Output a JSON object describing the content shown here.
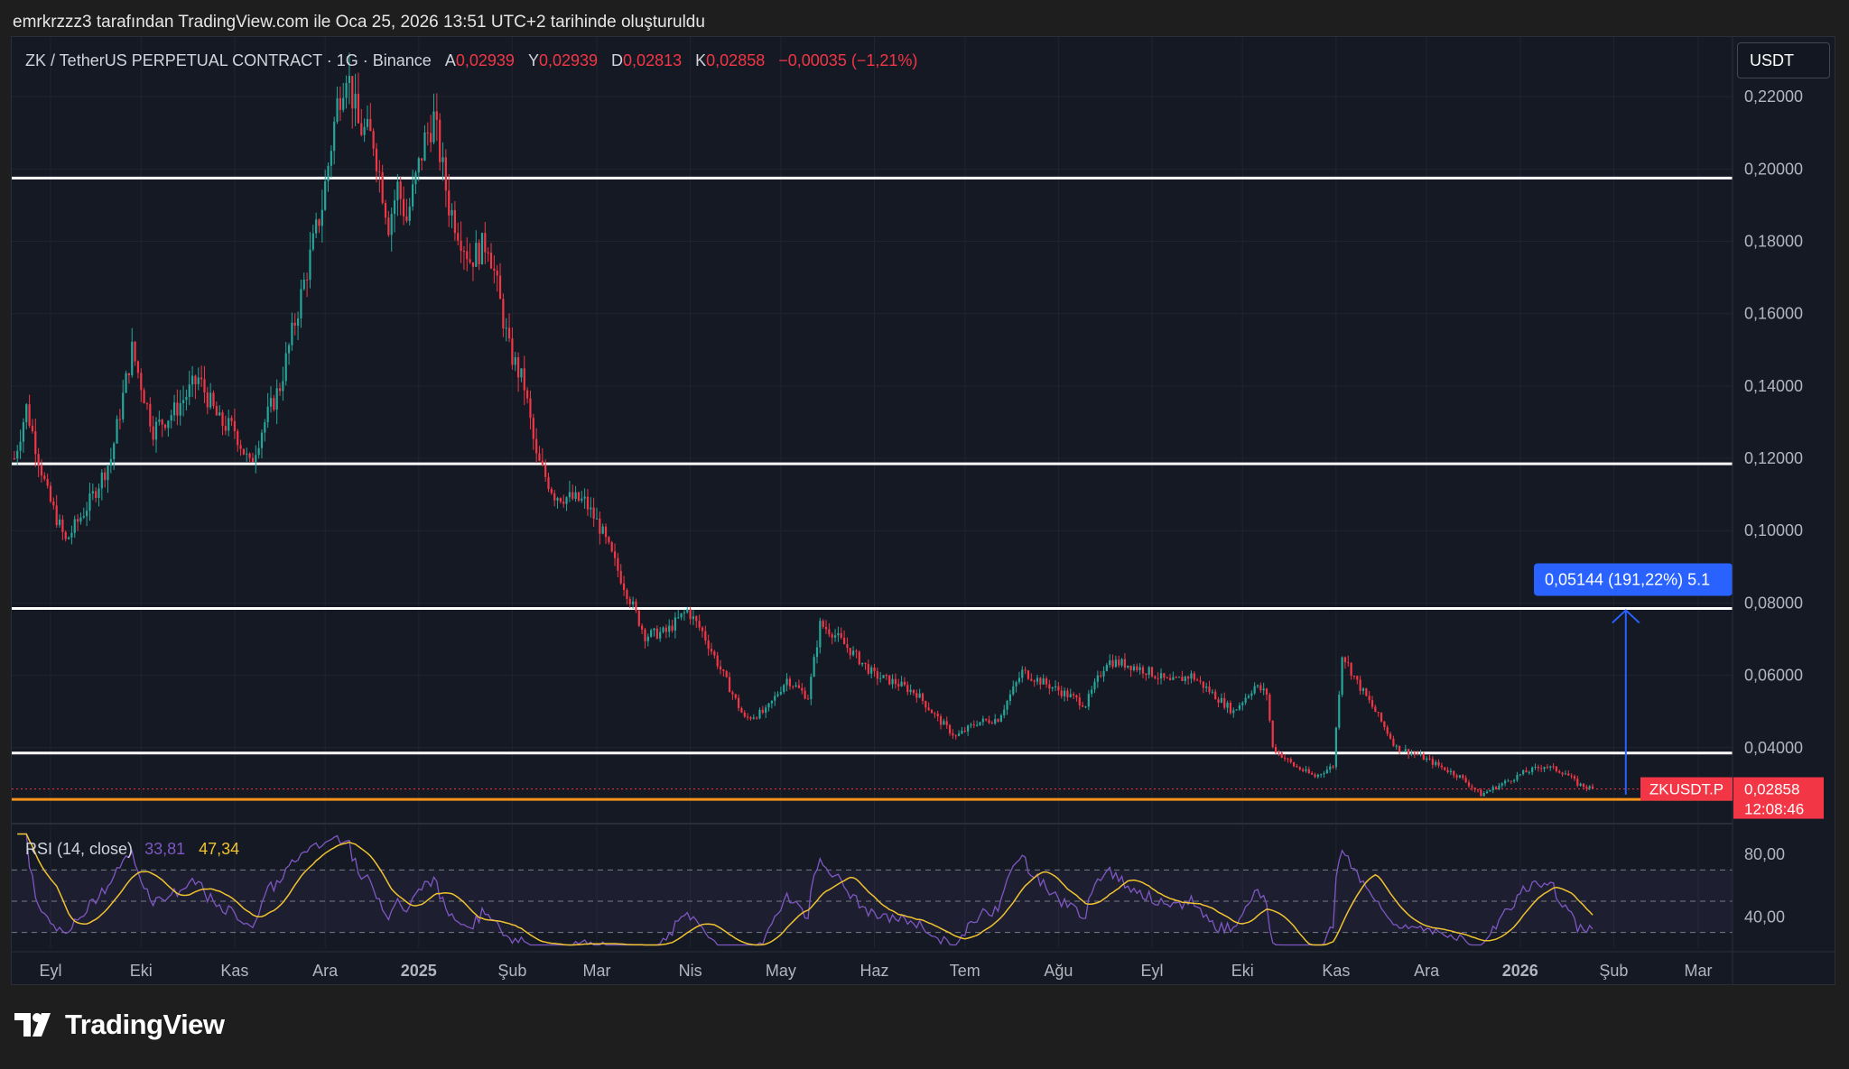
{
  "byline": "emrkrzzz3 tarafından TradingView.com ile Oca 25, 2026 13:51 UTC+2 tarihinde oluşturuldu",
  "header": {
    "symbol": "ZK / TetherUS PERPETUAL CONTRACT · 1G · Binance",
    "open_label": "A",
    "open_value": "0,02939",
    "high_label": "Y",
    "high_value": "0,02939",
    "low_label": "D",
    "low_value": "0,02813",
    "close_label": "K",
    "close_value": "0,02858",
    "change": "−0,00035 (−1,21%)"
  },
  "currency": "USDT",
  "logo_text": "TradingView",
  "colors": {
    "up": "#26a69a",
    "down": "#f23645",
    "background": "#151924",
    "rsi": "#7e57c2",
    "rsi_ma": "#f0c330",
    "support": "#f7931a",
    "measure": "#2962ff"
  },
  "chart_data": {
    "type": "candlestick",
    "symbol_badge": "ZKUSDT.P",
    "last_price": "0,02858",
    "countdown": "12:08:46",
    "ylim": [
      0.0175,
      0.2365
    ],
    "y_ticks": [
      {
        "value": 0.22,
        "label": "0,22000"
      },
      {
        "value": 0.2,
        "label": "0,20000"
      },
      {
        "value": 0.18,
        "label": "0,18000"
      },
      {
        "value": 0.16,
        "label": "0,16000"
      },
      {
        "value": 0.14,
        "label": "0,14000"
      },
      {
        "value": 0.12,
        "label": "0,12000"
      },
      {
        "value": 0.1,
        "label": "0,10000"
      },
      {
        "value": 0.08,
        "label": "0,08000"
      },
      {
        "value": 0.06,
        "label": "0,06000"
      },
      {
        "value": 0.04,
        "label": "0,04000"
      }
    ],
    "x_ticks": [
      {
        "date": "2024-09-01",
        "label": "Eyl",
        "bold": false
      },
      {
        "date": "2024-10-01",
        "label": "Eki",
        "bold": false
      },
      {
        "date": "2024-11-01",
        "label": "Kas",
        "bold": false
      },
      {
        "date": "2024-12-01",
        "label": "Ara",
        "bold": false
      },
      {
        "date": "2025-01-01",
        "label": "2025",
        "bold": true
      },
      {
        "date": "2025-02-01",
        "label": "Şub",
        "bold": false
      },
      {
        "date": "2025-03-01",
        "label": "Mar",
        "bold": false
      },
      {
        "date": "2025-04-01",
        "label": "Nis",
        "bold": false
      },
      {
        "date": "2025-05-01",
        "label": "May",
        "bold": false
      },
      {
        "date": "2025-06-01",
        "label": "Haz",
        "bold": false
      },
      {
        "date": "2025-07-01",
        "label": "Tem",
        "bold": false
      },
      {
        "date": "2025-08-01",
        "label": "Ağu",
        "bold": false
      },
      {
        "date": "2025-09-01",
        "label": "Eyl",
        "bold": false
      },
      {
        "date": "2025-10-01",
        "label": "Eki",
        "bold": false
      },
      {
        "date": "2025-11-01",
        "label": "Kas",
        "bold": false
      },
      {
        "date": "2025-12-01",
        "label": "Ara",
        "bold": false
      },
      {
        "date": "2026-01-01",
        "label": "2026",
        "bold": true
      },
      {
        "date": "2026-02-01",
        "label": "Şub",
        "bold": false
      },
      {
        "date": "2026-03-01",
        "label": "Mar",
        "bold": false
      }
    ],
    "price_path": [
      [
        "2024-08-20",
        0.12
      ],
      [
        "2024-08-24",
        0.134
      ],
      [
        "2024-08-31",
        0.11
      ],
      [
        "2024-09-06",
        0.097
      ],
      [
        "2024-09-14",
        0.108
      ],
      [
        "2024-09-21",
        0.12
      ],
      [
        "2024-09-28",
        0.15
      ],
      [
        "2024-10-05",
        0.128
      ],
      [
        "2024-10-12",
        0.133
      ],
      [
        "2024-10-20",
        0.142
      ],
      [
        "2024-10-27",
        0.13
      ],
      [
        "2024-11-01",
        0.128
      ],
      [
        "2024-11-06",
        0.118
      ],
      [
        "2024-11-10",
        0.128
      ],
      [
        "2024-11-16",
        0.14
      ],
      [
        "2024-11-23",
        0.165
      ],
      [
        "2024-11-30",
        0.19
      ],
      [
        "2024-12-05",
        0.218
      ],
      [
        "2024-12-08",
        0.228
      ],
      [
        "2024-12-12",
        0.212
      ],
      [
        "2024-12-17",
        0.208
      ],
      [
        "2024-12-22",
        0.185
      ],
      [
        "2024-12-25",
        0.195
      ],
      [
        "2024-12-28",
        0.186
      ],
      [
        "2025-01-03",
        0.208
      ],
      [
        "2025-01-06",
        0.214
      ],
      [
        "2025-01-11",
        0.19
      ],
      [
        "2025-01-18",
        0.175
      ],
      [
        "2025-01-24",
        0.18
      ],
      [
        "2025-01-31",
        0.15
      ],
      [
        "2025-02-05",
        0.14
      ],
      [
        "2025-02-09",
        0.12
      ],
      [
        "2025-02-15",
        0.11
      ],
      [
        "2025-02-25",
        0.108
      ],
      [
        "2025-03-02",
        0.101
      ],
      [
        "2025-03-10",
        0.085
      ],
      [
        "2025-03-17",
        0.071
      ],
      [
        "2025-03-24",
        0.072
      ],
      [
        "2025-03-31",
        0.078
      ],
      [
        "2025-04-05",
        0.072
      ],
      [
        "2025-04-12",
        0.06
      ],
      [
        "2025-04-19",
        0.048
      ],
      [
        "2025-04-26",
        0.05
      ],
      [
        "2025-05-03",
        0.059
      ],
      [
        "2025-05-10",
        0.054
      ],
      [
        "2025-05-14",
        0.074
      ],
      [
        "2025-05-18",
        0.072
      ],
      [
        "2025-05-25",
        0.066
      ],
      [
        "2025-06-01",
        0.06
      ],
      [
        "2025-06-08",
        0.058
      ],
      [
        "2025-06-15",
        0.055
      ],
      [
        "2025-06-22",
        0.048
      ],
      [
        "2025-06-28",
        0.043
      ],
      [
        "2025-07-05",
        0.047
      ],
      [
        "2025-07-12",
        0.048
      ],
      [
        "2025-07-20",
        0.061
      ],
      [
        "2025-07-27",
        0.058
      ],
      [
        "2025-08-03",
        0.055
      ],
      [
        "2025-08-10",
        0.052
      ],
      [
        "2025-08-17",
        0.064
      ],
      [
        "2025-08-24",
        0.063
      ],
      [
        "2025-08-31",
        0.061
      ],
      [
        "2025-09-07",
        0.058
      ],
      [
        "2025-09-14",
        0.06
      ],
      [
        "2025-09-21",
        0.055
      ],
      [
        "2025-09-28",
        0.05
      ],
      [
        "2025-10-05",
        0.057
      ],
      [
        "2025-10-09",
        0.055
      ],
      [
        "2025-10-11",
        0.04
      ],
      [
        "2025-10-18",
        0.035
      ],
      [
        "2025-10-25",
        0.032
      ],
      [
        "2025-10-31",
        0.035
      ],
      [
        "2025-11-03",
        0.066
      ],
      [
        "2025-11-08",
        0.058
      ],
      [
        "2025-11-14",
        0.05
      ],
      [
        "2025-11-21",
        0.04
      ],
      [
        "2025-11-28",
        0.038
      ],
      [
        "2025-12-05",
        0.035
      ],
      [
        "2025-12-12",
        0.032
      ],
      [
        "2025-12-19",
        0.027
      ],
      [
        "2025-12-26",
        0.03
      ],
      [
        "2026-01-02",
        0.033
      ],
      [
        "2026-01-09",
        0.035
      ],
      [
        "2026-01-16",
        0.033
      ],
      [
        "2026-01-20",
        0.03
      ],
      [
        "2026-01-25",
        0.0286
      ]
    ],
    "horizontal_lines": [
      {
        "value": 0.1975,
        "color": "#ffffff"
      },
      {
        "value": 0.1185,
        "color": "#ffffff"
      },
      {
        "value": 0.0785,
        "color": "#ffffff"
      },
      {
        "value": 0.0385,
        "color": "#ffffff"
      },
      {
        "value": 0.0257,
        "color": "#f7931a"
      }
    ],
    "measure": {
      "date": "2026-02-05",
      "from": 0.027,
      "to": 0.0785,
      "label": "0,05144 (191,22%) 5.1"
    },
    "rsi": {
      "name": "RSI (14, close)",
      "value": "33,81",
      "ma_value": "47,34",
      "levels": [
        70,
        50,
        30
      ],
      "y_ticks": [
        {
          "value": 80,
          "label": "80,00"
        },
        {
          "value": 40,
          "label": "40,00"
        }
      ],
      "ylim": [
        20,
        95
      ]
    }
  }
}
